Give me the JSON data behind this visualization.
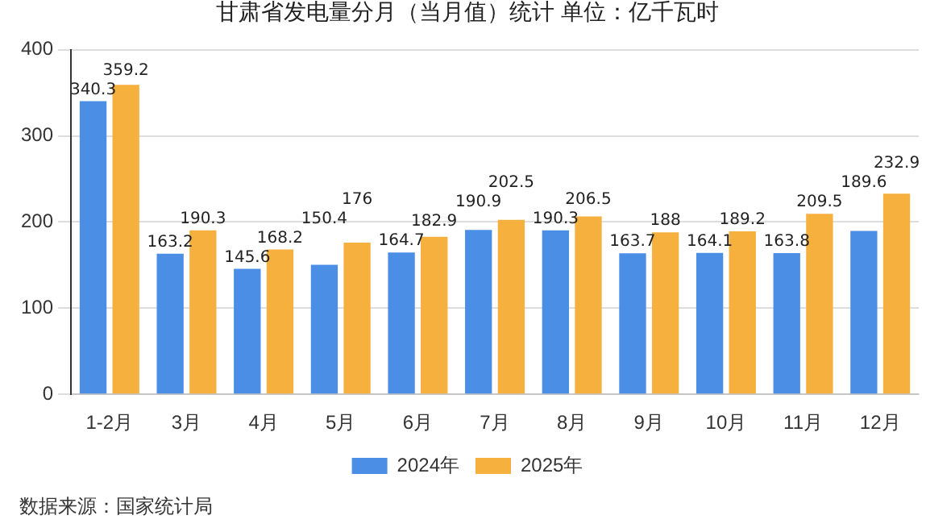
{
  "chart_data": {
    "type": "bar",
    "title": "甘肃省发电量分月（当月值）统计 单位：亿千瓦时",
    "categories": [
      "1-2月",
      "3月",
      "4月",
      "5月",
      "6月",
      "7月",
      "8月",
      "9月",
      "10月",
      "11月",
      "12月"
    ],
    "series": [
      {
        "name": "2024年",
        "color": "#4a8ee6",
        "values": [
          340.3,
          163.2,
          145.6,
          150.4,
          164.7,
          190.9,
          190.3,
          163.7,
          164.1,
          163.8,
          189.6
        ]
      },
      {
        "name": "2025年",
        "color": "#f6b03e",
        "values": [
          359.2,
          190.3,
          168.2,
          176,
          182.9,
          202.5,
          206.5,
          188,
          189.2,
          209.5,
          232.9
        ]
      }
    ],
    "ylim": [
      0,
      400
    ],
    "yticks": [
      0,
      100,
      200,
      300,
      400
    ],
    "grid": "y",
    "legend": "bottom",
    "data_labels": true,
    "annotations": [
      "数据来源：国家统计局"
    ]
  }
}
